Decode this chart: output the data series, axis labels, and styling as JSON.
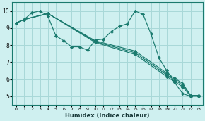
{
  "xlabel": "Humidex (Indice chaleur)",
  "bg_color": "#cff0f0",
  "grid_color": "#a8d8d8",
  "line_color": "#1a7a6e",
  "xlim": [
    -0.5,
    23.5
  ],
  "ylim": [
    4.5,
    10.5
  ],
  "xticks": [
    0,
    1,
    2,
    3,
    4,
    5,
    6,
    7,
    8,
    9,
    10,
    11,
    12,
    13,
    14,
    15,
    16,
    17,
    18,
    19,
    20,
    21,
    22,
    23
  ],
  "yticks": [
    5,
    6,
    7,
    8,
    9,
    10
  ],
  "lines": [
    {
      "x": [
        0,
        1,
        2,
        3,
        4,
        5,
        6,
        7,
        8,
        9,
        10,
        11,
        12,
        13,
        14,
        15,
        16,
        17,
        18,
        19,
        20,
        21,
        22,
        23
      ],
      "y": [
        9.3,
        9.5,
        9.9,
        10.0,
        9.7,
        8.55,
        8.25,
        7.9,
        7.9,
        7.7,
        8.3,
        8.35,
        8.8,
        9.1,
        9.25,
        10.0,
        9.8,
        8.65,
        7.25,
        6.5,
        5.8,
        5.15,
        5.0,
        5.05
      ]
    },
    {
      "x": [
        0,
        1,
        4,
        10,
        15,
        19,
        20,
        21,
        22,
        23
      ],
      "y": [
        9.3,
        9.5,
        9.85,
        8.25,
        7.65,
        6.35,
        6.05,
        5.75,
        5.05,
        5.05
      ]
    },
    {
      "x": [
        0,
        1,
        4,
        10,
        15,
        19,
        20,
        21,
        22,
        23
      ],
      "y": [
        9.3,
        9.5,
        9.85,
        8.2,
        7.55,
        6.25,
        5.95,
        5.65,
        5.05,
        5.05
      ]
    },
    {
      "x": [
        0,
        1,
        4,
        10,
        15,
        19,
        20,
        21,
        22,
        23
      ],
      "y": [
        9.3,
        9.5,
        9.85,
        8.15,
        7.45,
        6.15,
        5.85,
        5.55,
        5.0,
        5.0
      ]
    }
  ]
}
